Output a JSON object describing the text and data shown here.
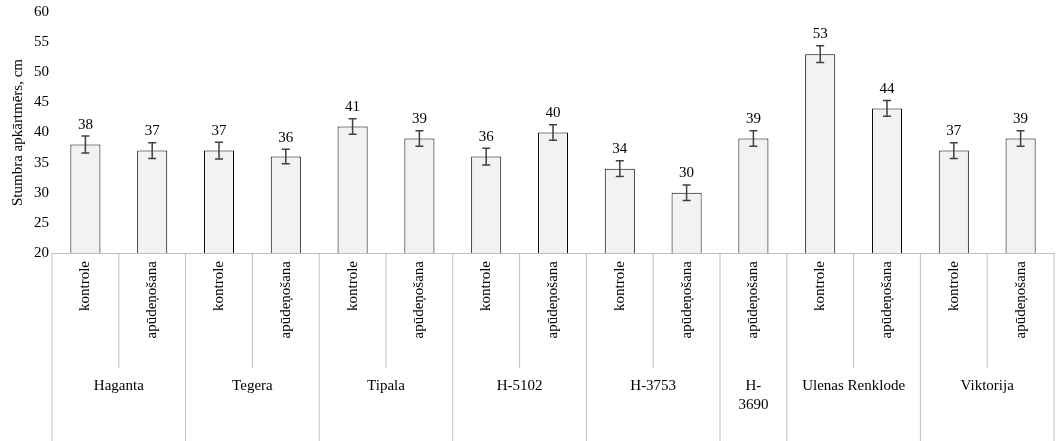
{
  "chart_data": {
    "type": "bar",
    "ylabel": "Stumbra apkārtmērs, cm",
    "categories": [
      "kontrole",
      "apūdeņošana",
      "kontrole",
      "apūdeņošana",
      "kontrole",
      "apūdeņošana",
      "kontrole",
      "apūdeņošana",
      "kontrole",
      "apūdeņošana",
      "apūdeņošana",
      "kontrole",
      "apūdeņošana",
      "kontrole",
      "apūdeņošana"
    ],
    "annotations": [
      "Haganta",
      "Tegera",
      "Tipala",
      "H-5102",
      "H-3753",
      "H-3690",
      "Ulenas Renklode",
      "Viktorija"
    ],
    "values": [
      38,
      37,
      37,
      36,
      41,
      39,
      36,
      40,
      34,
      30,
      39,
      53,
      44,
      37,
      39
    ],
    "errors": [
      1.4,
      1.3,
      1.4,
      1.2,
      1.3,
      1.3,
      1.4,
      1.3,
      1.3,
      1.3,
      1.3,
      1.4,
      1.3,
      1.3,
      1.3
    ],
    "color": "#f2f2f2",
    "ylim": [
      20,
      60
    ],
    "yticks": [
      20,
      25,
      30,
      35,
      40,
      45,
      50,
      55,
      60
    ],
    "data_labels": true
  }
}
